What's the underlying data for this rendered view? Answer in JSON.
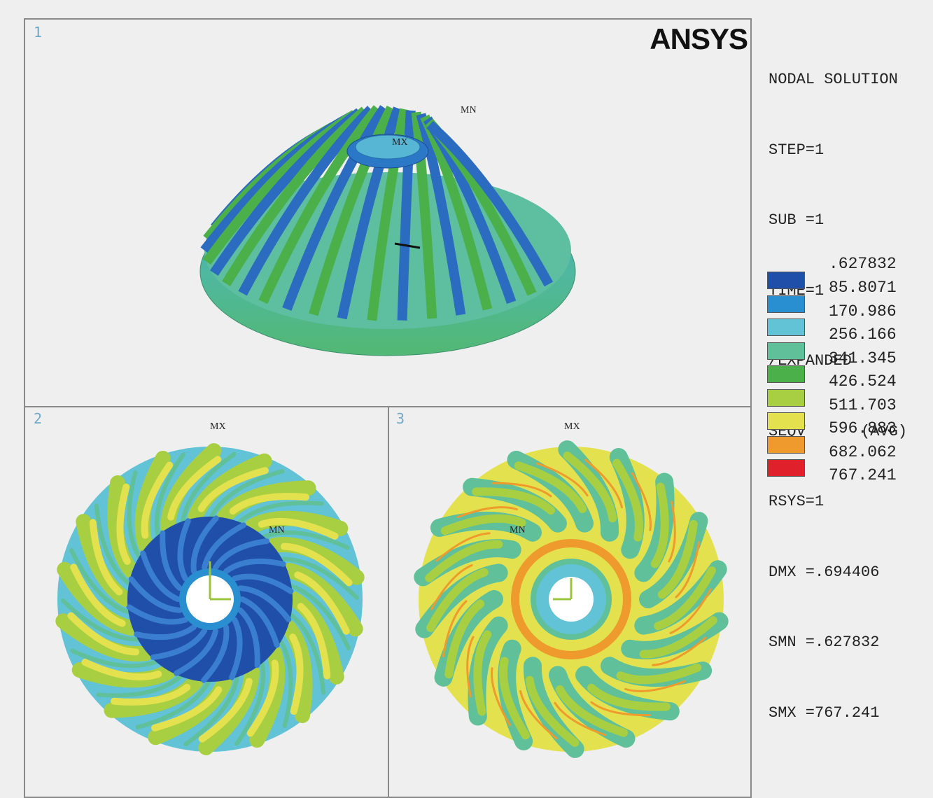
{
  "brand": "ANSYS",
  "viewports": [
    {
      "number": "1",
      "markers": [
        "MN",
        "MX"
      ]
    },
    {
      "number": "2",
      "markers": [
        "MX",
        "MN"
      ]
    },
    {
      "number": "3",
      "markers": [
        "MX",
        "MN"
      ]
    }
  ],
  "solution_info": [
    "NODAL SOLUTION",
    "STEP=1",
    "SUB =1",
    "TIME=1",
    "/EXPANDED",
    "SEQV      (AVG)",
    "RSYS=1",
    "DMX =.694406",
    "SMN =.627832",
    "SMX =767.241"
  ],
  "legend": {
    "min_label": ".627832",
    "entries": [
      {
        "value": "85.8071",
        "color": "#1f4fa8"
      },
      {
        "value": "170.986",
        "color": "#2a8fd0"
      },
      {
        "value": "256.166",
        "color": "#62c2d6"
      },
      {
        "value": "341.345",
        "color": "#5fc09a"
      },
      {
        "value": "426.524",
        "color": "#4cb04a"
      },
      {
        "value": "511.703",
        "color": "#a8cf42"
      },
      {
        "value": "596.883",
        "color": "#e3e24e"
      },
      {
        "value": "682.062",
        "color": "#ee9a2c"
      },
      {
        "value": "767.241",
        "color": "#e0202a"
      }
    ]
  }
}
